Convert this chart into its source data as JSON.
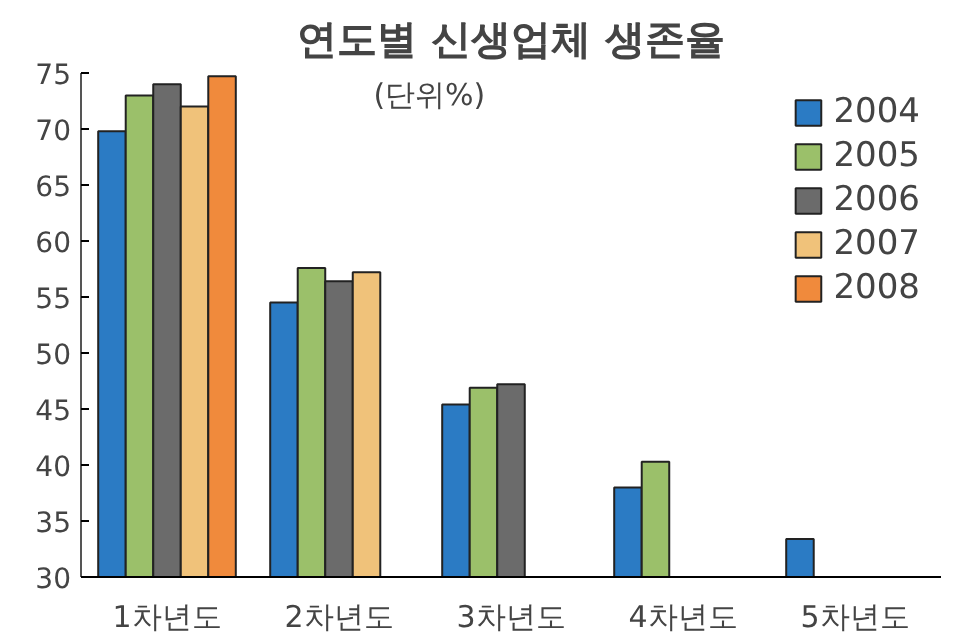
{
  "chart_data": {
    "type": "bar",
    "title": "연도별 신생업체 생존율",
    "annotations": [
      "(단위%)"
    ],
    "categories": [
      "1차년도",
      "2차년도",
      "3차년도",
      "4차년도",
      "5차년도"
    ],
    "series": [
      {
        "name": "2004",
        "color": "#2b7bc4",
        "values": [
          69.8,
          54.5,
          45.4,
          38.0,
          33.4
        ]
      },
      {
        "name": "2005",
        "color": "#9bc06a",
        "values": [
          73.0,
          57.6,
          46.9,
          40.3,
          null
        ]
      },
      {
        "name": "2006",
        "color": "#6b6b6b",
        "values": [
          74.0,
          56.4,
          47.2,
          null,
          null
        ]
      },
      {
        "name": "2007",
        "color": "#f0c27a",
        "values": [
          72.0,
          57.2,
          null,
          null,
          null
        ]
      },
      {
        "name": "2008",
        "color": "#f08a3c",
        "values": [
          74.7,
          null,
          null,
          null,
          null
        ]
      }
    ],
    "ylim": [
      30,
      75
    ],
    "yticks": [
      30,
      35,
      40,
      45,
      50,
      55,
      60,
      65,
      70,
      75
    ],
    "grid": false,
    "legend": "top right"
  }
}
